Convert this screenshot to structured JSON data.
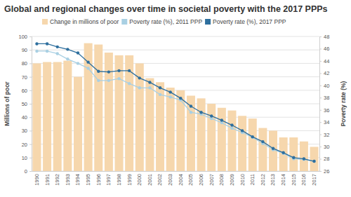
{
  "chart_data": {
    "type": "bar",
    "title": "Global and regional changes over time in societal poverty with the 2017 PPPs",
    "categories": [
      "1990",
      "1991",
      "1992",
      "1993",
      "1994",
      "1995",
      "1996",
      "1997",
      "1998",
      "1999",
      "2000",
      "2001",
      "2002",
      "2003",
      "2004",
      "2005",
      "2006",
      "2007",
      "2008",
      "2009",
      "2010",
      "2011",
      "2012",
      "2013",
      "2014",
      "2015",
      "2016",
      "2017"
    ],
    "series": [
      {
        "name": "Change in millions of poor",
        "type": "bar",
        "color": "#f6d7ad",
        "values": [
          80,
          81,
          81,
          82,
          70,
          95,
          94,
          88,
          86,
          86,
          80,
          69,
          66,
          62,
          60,
          56,
          54,
          50,
          47,
          45,
          41,
          39,
          32,
          30,
          25,
          25,
          22,
          18
        ]
      },
      {
        "name": "Poverty rate (%), 2011 PPP",
        "type": "line",
        "axis": "y2",
        "color": "#a9d0e3",
        "marker": "circle",
        "values": [
          45.6,
          45.6,
          45.2,
          44.3,
          43.6,
          42.8,
          40.8,
          40.8,
          41.1,
          40.3,
          39.6,
          39.6,
          38.5,
          38.1,
          37.6,
          35.6,
          35.3,
          34.6,
          33.9,
          33.0,
          32.3,
          31.5,
          30.5,
          29.5,
          28.9,
          28.0,
          27.9,
          27.6
        ]
      },
      {
        "name": "Poverty rate (%), 2017 PPP",
        "type": "line",
        "axis": "y2",
        "color": "#2e6f9e",
        "marker": "circle",
        "values": [
          46.8,
          46.8,
          46.3,
          45.9,
          45.3,
          43.8,
          42.3,
          42.2,
          42.4,
          42.4,
          41.2,
          40.5,
          39.6,
          38.9,
          37.9,
          36.6,
          35.6,
          35.0,
          34.3,
          33.5,
          32.6,
          31.6,
          30.8,
          29.7,
          29.0,
          28.2,
          28.0,
          27.6
        ]
      }
    ],
    "y_label": "Millions of poor",
    "y2_label": "Poverty rate (%)",
    "ylim": [
      0,
      100
    ],
    "yticks": [
      0,
      10,
      20,
      30,
      40,
      50,
      60,
      70,
      80,
      90,
      100
    ],
    "y2lim": [
      26,
      48
    ],
    "y2ticks": [
      26,
      28,
      30,
      32,
      34,
      36,
      38,
      40,
      42,
      44,
      46,
      48
    ],
    "grid": true,
    "legend": "top-left"
  }
}
